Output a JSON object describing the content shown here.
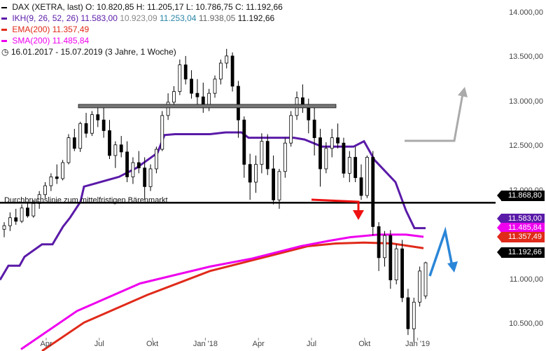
{
  "legend": {
    "title_row": "DAX (XETRA, last)  O: 10.820,85  H: 11.205,17  L: 10.786,75  C: 11.192,66",
    "ikh_label": "IKH(9, 26, 52, 26)",
    "ikh_values": [
      "11.583,00",
      "10.923,09",
      "11.253,04",
      "11.938,05",
      "11.192,66"
    ],
    "ema_label": "EMA(200)",
    "ema_value": "11.357,49",
    "sma_label": "SMA(200)",
    "sma_value": "11.485,84",
    "range_text": "16.01.2017 - 15.07.2019   (3 Jahre, 1 Woche)",
    "clock_icon": "clock-icon"
  },
  "annotation": "Durchbruchslinie zum mittelfristigen Bärenmarkt",
  "colors": {
    "candle_up": "#ffffff",
    "candle_down": "#000000",
    "ikh": "#5a1aa8",
    "ema": "#e02a1a",
    "sma": "#ee00ee",
    "breakout_line": "#000000",
    "resistance_bar": "#777777",
    "arrow_red": "#ee1111",
    "arrow_gray": "#aaaaaa",
    "arrow_blue": "#2a86d8",
    "tag_black": "#000000"
  },
  "price_tags": [
    {
      "label": "11.868,80",
      "color": "#000000"
    },
    {
      "label": "11.583,00",
      "color": "#5a1aa8"
    },
    {
      "label": "11.485,84",
      "color": "#ee00ee"
    },
    {
      "label": "11.357,49",
      "color": "#e02a1a"
    },
    {
      "label": "11.192,66",
      "color": "#000000"
    }
  ],
  "chart_data": {
    "type": "candlestick",
    "title": "DAX (XETRA, last)",
    "ylim": [
      10200,
      14150
    ],
    "y_ticks": [
      "14.000,00",
      "13.500,00",
      "13.000,00",
      "12.500,00",
      "12.000,00",
      "11.500,00",
      "11.000,00",
      "10.500,00"
    ],
    "x_ticks": [
      "Apr",
      "Jul",
      "Okt",
      "Jan '18",
      "Apr",
      "Jul",
      "Okt",
      "Jan '19"
    ],
    "x_range": [
      "2017-01-16",
      "2019-01-14"
    ],
    "candles_weekly_approx": [
      [
        11570,
        11650,
        11480,
        11610
      ],
      [
        11610,
        11760,
        11550,
        11700
      ],
      [
        11700,
        11800,
        11620,
        11660
      ],
      [
        11660,
        11850,
        11640,
        11810
      ],
      [
        11810,
        11860,
        11700,
        11720
      ],
      [
        11720,
        11900,
        11700,
        11860
      ],
      [
        11860,
        12000,
        11800,
        11960
      ],
      [
        11960,
        12100,
        11920,
        12060
      ],
      [
        12060,
        12200,
        12000,
        12160
      ],
      [
        12160,
        12300,
        12080,
        12140
      ],
      [
        12140,
        12350,
        12120,
        12320
      ],
      [
        12320,
        12640,
        12300,
        12600
      ],
      [
        12600,
        12700,
        12450,
        12480
      ],
      [
        12480,
        12780,
        12440,
        12760
      ],
      [
        12760,
        12880,
        12600,
        12650
      ],
      [
        12650,
        12900,
        12620,
        12860
      ],
      [
        12860,
        12950,
        12720,
        12800
      ],
      [
        12800,
        12940,
        12600,
        12680
      ],
      [
        12680,
        12800,
        12360,
        12400
      ],
      [
        12400,
        12560,
        12260,
        12520
      ],
      [
        12520,
        12620,
        12380,
        12440
      ],
      [
        12440,
        12560,
        12100,
        12160
      ],
      [
        12160,
        12380,
        12080,
        12320
      ],
      [
        12320,
        12450,
        12200,
        12260
      ],
      [
        12260,
        12380,
        11900,
        12050
      ],
      [
        12050,
        12300,
        12000,
        12250
      ],
      [
        12250,
        12500,
        12200,
        12470
      ],
      [
        12470,
        12900,
        12450,
        12850
      ],
      [
        12850,
        13100,
        12800,
        13000
      ],
      [
        13000,
        13180,
        12950,
        13120
      ],
      [
        13120,
        13480,
        13080,
        13420
      ],
      [
        13420,
        13520,
        13200,
        13260
      ],
      [
        13260,
        13360,
        13040,
        13100
      ],
      [
        13100,
        13260,
        12960,
        13060
      ],
      [
        13060,
        13220,
        12880,
        12950
      ],
      [
        12950,
        13150,
        12900,
        13100
      ],
      [
        13100,
        13300,
        13050,
        13260
      ],
      [
        13260,
        13480,
        13200,
        13440
      ],
      [
        13440,
        13600,
        13380,
        13520
      ],
      [
        13520,
        13560,
        13120,
        13180
      ],
      [
        13180,
        13240,
        12600,
        12800
      ],
      [
        12800,
        12840,
        12150,
        12300
      ],
      [
        12300,
        12420,
        11900,
        12100
      ],
      [
        12100,
        12400,
        11980,
        12300
      ],
      [
        12300,
        12650,
        12200,
        12560
      ],
      [
        12560,
        12640,
        12180,
        12250
      ],
      [
        12250,
        12400,
        11850,
        11900
      ],
      [
        11900,
        12250,
        11800,
        12220
      ],
      [
        12220,
        12600,
        12150,
        12540
      ],
      [
        12540,
        12900,
        12500,
        12850
      ],
      [
        12850,
        13120,
        12800,
        13050
      ],
      [
        13050,
        13200,
        12880,
        12950
      ],
      [
        12950,
        13040,
        12650,
        12800
      ],
      [
        12800,
        12960,
        12400,
        12600
      ],
      [
        12600,
        12700,
        12050,
        12250
      ],
      [
        12250,
        12550,
        12200,
        12480
      ],
      [
        12480,
        12700,
        12380,
        12600
      ],
      [
        12600,
        12760,
        12480,
        12540
      ],
      [
        12540,
        12600,
        12150,
        12200
      ],
      [
        12200,
        12450,
        12100,
        12380
      ],
      [
        12380,
        12500,
        12100,
        12150
      ],
      [
        12150,
        12300,
        11900,
        11950
      ],
      [
        11950,
        12400,
        11920,
        12380
      ],
      [
        12380,
        12450,
        11500,
        11600
      ],
      [
        11600,
        11650,
        11100,
        11250
      ],
      [
        11250,
        11550,
        11150,
        11500
      ],
      [
        11500,
        11560,
        10900,
        11000
      ],
      [
        11000,
        11400,
        10950,
        11350
      ],
      [
        11350,
        11450,
        10750,
        10800
      ],
      [
        10800,
        10900,
        10380,
        10450
      ],
      [
        10450,
        10800,
        10300,
        10750
      ],
      [
        10750,
        11150,
        10700,
        11100
      ],
      [
        10820,
        11205,
        10786,
        11193
      ]
    ],
    "series": [
      {
        "name": "IKH(9, 26, 52, 26)",
        "last": 11583.0
      },
      {
        "name": "EMA(200)",
        "last": 11357.49
      },
      {
        "name": "SMA(200)",
        "last": 11485.84
      }
    ],
    "reference_lines": [
      {
        "label": "Durchbruchslinie zum mittelfristigen Bärenmarkt",
        "y": 11868.8
      },
      {
        "label": "",
        "y": 12960
      }
    ],
    "grid": false
  }
}
